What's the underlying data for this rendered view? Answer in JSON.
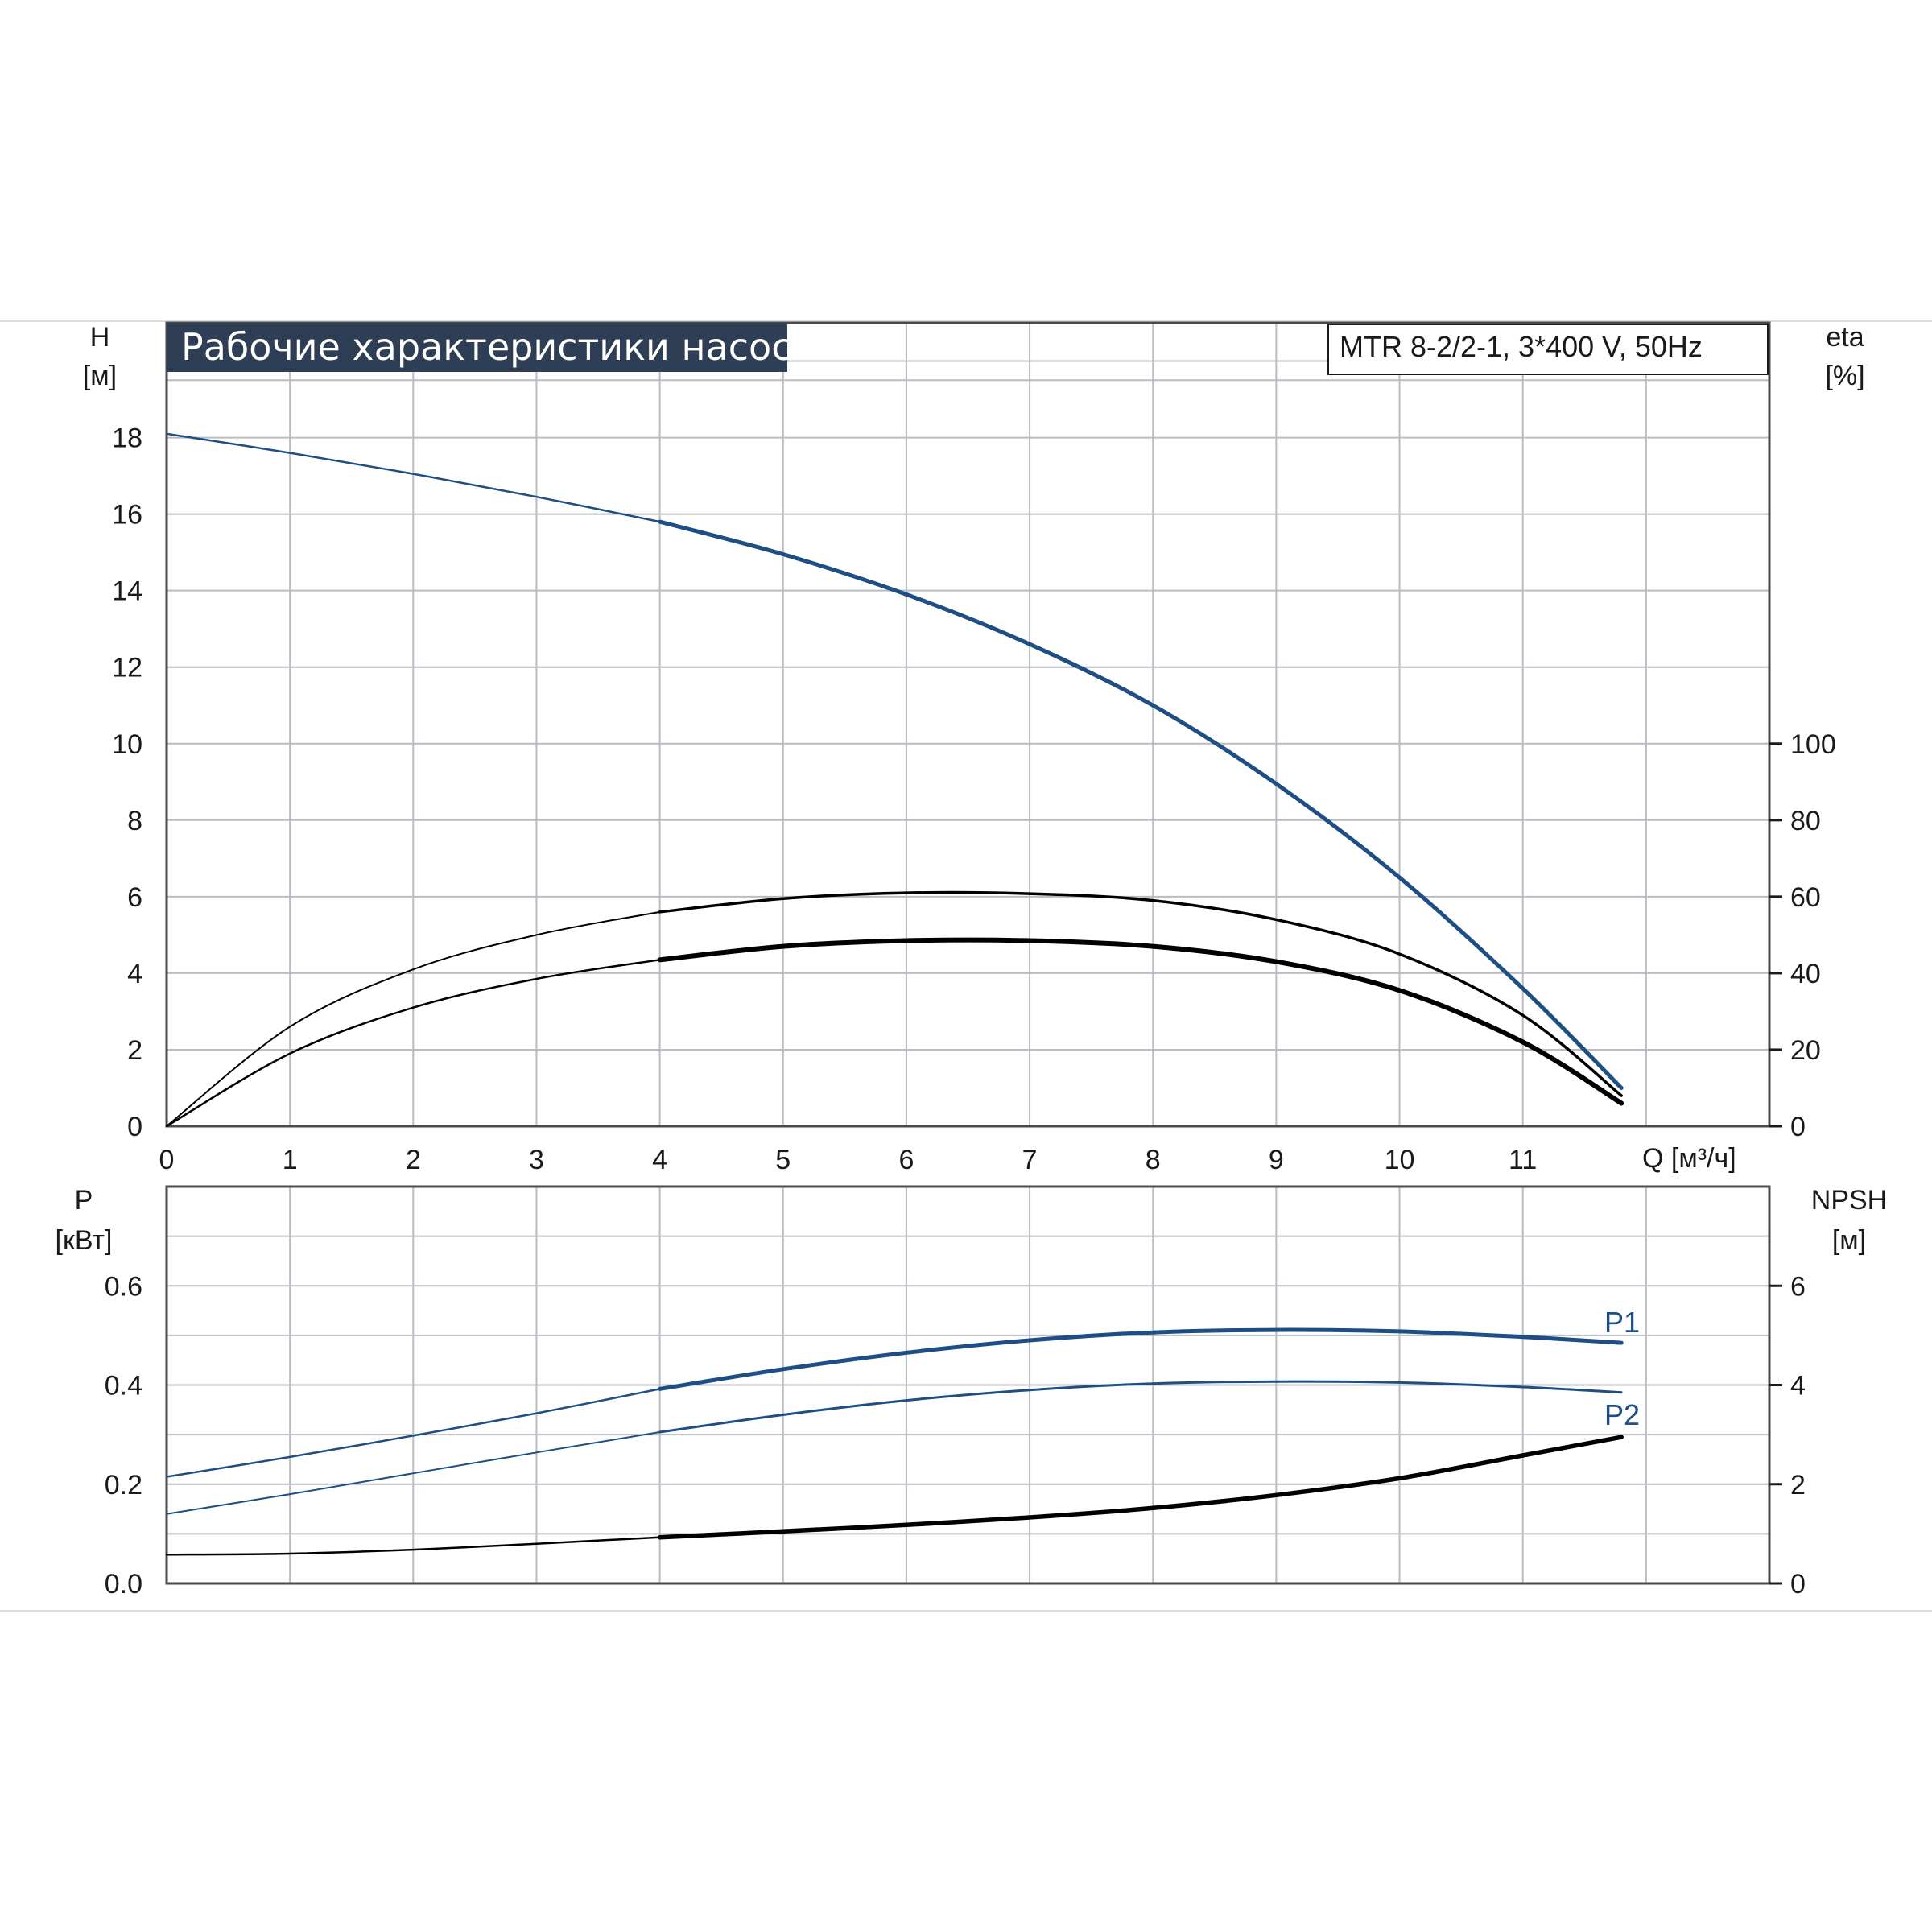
{
  "chart_data": [
    {
      "type": "line",
      "title": "Рабочие характеристики насоса",
      "model": "MTR 8-2/2-1, 3*400 V, 50Hz",
      "y_left_label": [
        "H",
        "[м]"
      ],
      "y_right_label": [
        "eta",
        "[%]"
      ],
      "x_label": "Q [м³/ч]",
      "x_ticks": [
        "0",
        "1",
        "2",
        "3",
        "4",
        "5",
        "6",
        "7",
        "8",
        "9",
        "10",
        "11"
      ],
      "y_left_ticks": [
        "0",
        "2",
        "4",
        "6",
        "8",
        "10",
        "12",
        "14",
        "16",
        "18"
      ],
      "y_right_ticks": [
        "0",
        "20",
        "40",
        "60",
        "80",
        "100"
      ],
      "xlim": [
        0,
        13
      ],
      "ylim_left": [
        0,
        21
      ],
      "ylim_right": [
        0,
        210
      ],
      "grid": true,
      "series": [
        {
          "axis": "left",
          "color": "#1f4e85",
          "x": [
            0,
            1,
            2,
            3,
            4,
            5,
            6,
            7,
            8,
            9,
            10,
            11,
            11.8
          ],
          "y": [
            18.1,
            17.6,
            17.05,
            16.45,
            15.8,
            14.95,
            13.9,
            12.6,
            11.0,
            8.95,
            6.5,
            3.6,
            1.0
          ]
        },
        {
          "axis": "right",
          "color": "#000000",
          "x": [
            0,
            1,
            2,
            3,
            4,
            5,
            6,
            7,
            8,
            9,
            10,
            11,
            11.8
          ],
          "y": [
            0,
            26,
            41,
            50,
            56,
            59.5,
            61,
            60.8,
            59,
            54,
            45,
            29,
            8
          ]
        },
        {
          "axis": "right",
          "color": "#000000",
          "x": [
            0,
            1,
            2,
            3,
            4,
            5,
            6,
            7,
            8,
            9,
            10,
            11,
            11.8
          ],
          "y": [
            0,
            19,
            31,
            38.5,
            43.5,
            47,
            48.5,
            48.5,
            47,
            43,
            35.5,
            22,
            6
          ]
        }
      ]
    },
    {
      "type": "line",
      "y_left_label": [
        "P",
        "[кВт]"
      ],
      "y_right_label": [
        "NPSH",
        "[м]"
      ],
      "y_left_ticks": [
        "0.0",
        "0.2",
        "0.4",
        "0.6"
      ],
      "y_right_ticks": [
        "0",
        "2",
        "4",
        "6"
      ],
      "xlim": [
        0,
        13
      ],
      "ylim_left": [
        0,
        0.8
      ],
      "ylim_right": [
        0,
        8
      ],
      "grid": true,
      "series": [
        {
          "name": "P1",
          "axis": "left",
          "color": "#1f4e85",
          "x": [
            0,
            1,
            2,
            3,
            4,
            5,
            6,
            7,
            8,
            9,
            10,
            11,
            11.8
          ],
          "y": [
            0.215,
            0.255,
            0.298,
            0.343,
            0.392,
            0.432,
            0.465,
            0.49,
            0.506,
            0.511,
            0.508,
            0.497,
            0.485
          ]
        },
        {
          "name": "P2",
          "axis": "left",
          "color": "#1f4e85",
          "x": [
            0,
            1,
            2,
            3,
            4,
            5,
            6,
            7,
            8,
            9,
            10,
            11,
            11.8
          ],
          "y": [
            0.14,
            0.18,
            0.222,
            0.264,
            0.305,
            0.34,
            0.369,
            0.39,
            0.403,
            0.407,
            0.405,
            0.396,
            0.385
          ]
        },
        {
          "axis": "right",
          "color": "#000000",
          "x": [
            0,
            1,
            2,
            3,
            4,
            5,
            6,
            7,
            8,
            9,
            10,
            11,
            11.8
          ],
          "y": [
            0.58,
            0.6,
            0.68,
            0.8,
            0.93,
            1.05,
            1.18,
            1.33,
            1.52,
            1.78,
            2.12,
            2.58,
            2.95
          ]
        }
      ]
    }
  ]
}
